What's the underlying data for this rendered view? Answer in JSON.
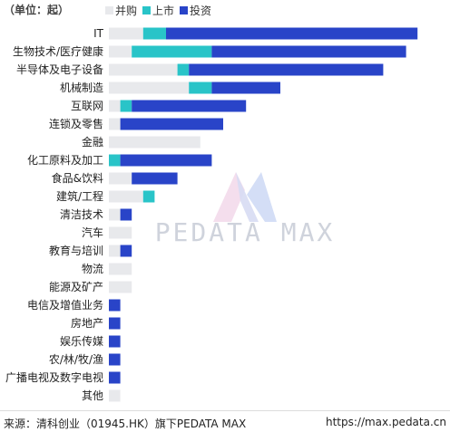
{
  "header": {
    "unit_label": "（单位：起）"
  },
  "legend": [
    {
      "name": "并购",
      "color": "#e8e9ec"
    },
    {
      "name": "上市",
      "color": "#29c4c8"
    },
    {
      "name": "投资",
      "color": "#2944c8"
    }
  ],
  "chart_data": {
    "type": "bar",
    "orientation": "horizontal",
    "stacked": true,
    "categories": [
      "IT",
      "生物技术/医疗健康",
      "半导体及电子设备",
      "机械制造",
      "互联网",
      "连锁及零售",
      "金融",
      "化工原料及加工",
      "食品&饮料",
      "建筑/工程",
      "清洁技术",
      "汽车",
      "教育与培训",
      "物流",
      "能源及矿产",
      "电信及增值业务",
      "房地产",
      "娱乐传媒",
      "农/林/牧/渔",
      "广播电视及数字电视",
      "其他"
    ],
    "series": [
      {
        "name": "并购",
        "values": [
          3,
          2,
          6,
          7,
          1,
          1,
          8,
          0,
          2,
          3,
          1,
          2,
          1,
          2,
          2,
          0,
          0,
          0,
          0,
          0,
          1
        ]
      },
      {
        "name": "上市",
        "values": [
          2,
          7,
          1,
          2,
          1,
          0,
          0,
          1,
          0,
          1,
          0,
          0,
          0,
          0,
          0,
          0,
          0,
          0,
          0,
          0,
          0
        ]
      },
      {
        "name": "投资",
        "values": [
          22,
          17,
          17,
          6,
          10,
          9,
          0,
          8,
          4,
          0,
          1,
          0,
          1,
          0,
          0,
          1,
          1,
          1,
          1,
          1,
          0
        ]
      }
    ],
    "grid": false,
    "legend_position": "top"
  },
  "watermark": {
    "text": "PEDATA MAX"
  },
  "footer": {
    "source": "来源：清科创业（01945.HK）旗下PEDATA MAX",
    "url": "https://max.pedata.cn"
  }
}
